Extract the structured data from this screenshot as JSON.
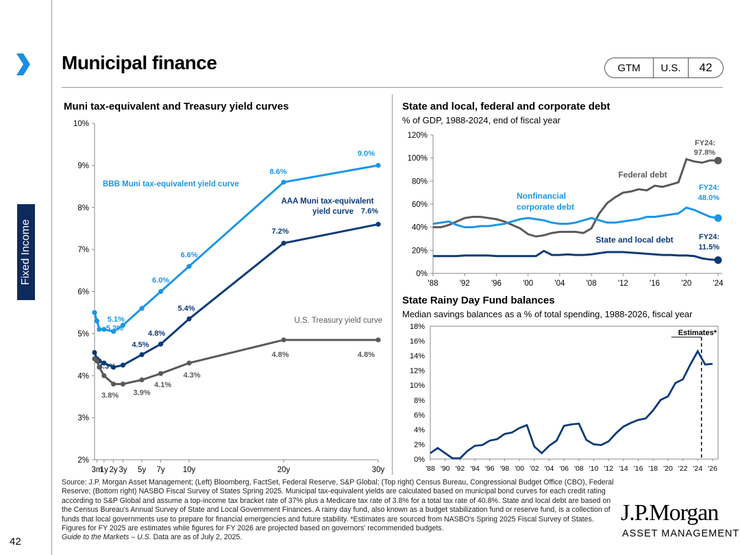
{
  "header": {
    "title": "Municipal finance",
    "pill": [
      "GTM",
      "U.S.",
      "42"
    ],
    "side_tab": "Fixed Income",
    "page_number": "42",
    "arrow_color": "#1a8fe3",
    "tab_color": "#0e2a5c"
  },
  "yield_chart": {
    "title": "Muni tax-equivalent and Treasury yield curves",
    "labels": {
      "bbb": "BBB  Muni tax-equivalent yield curve",
      "aaa1": "AAA Muni tax-equivalent",
      "aaa2": "yield curve",
      "ust": "U.S. Treasury yield curve"
    }
  },
  "debt_chart": {
    "title": "State and local, federal and corporate debt",
    "subtitle": "% of GDP, 1988-2024, end of fiscal year",
    "labels": {
      "federal": "Federal debt",
      "corp1": "Nonfinancial",
      "corp2": "corporate debt",
      "state": "State and local debt",
      "fed_end1": "FY24:",
      "fed_end2": "97.8%",
      "corp_end1": "FY24:",
      "corp_end2": "48.0%",
      "state_end1": "FY24:",
      "state_end2": "11.5%"
    }
  },
  "rainy_chart": {
    "title": "State Rainy Day Fund balances",
    "subtitle": "Median savings balances as a % of total spending, 1988-2026, fiscal year",
    "estimates_label": "Estimates*"
  },
  "footnote": {
    "text": "Source: J.P. Morgan Asset Management; (Left) Bloomberg, FactSet, Federal Reserve, S&P Global; (Top right) Census Bureau, Congressional Budget Office (CBO), Federal Reserve; (Bottom right) NASBO Fiscal Survey of States Spring 2025. Municipal tax-equivalent yields are calculated based on municipal bond curves for each credit rating according to S&P Global and assume a top-income tax bracket rate of 37% plus a Medicare tax rate of 3.8% for a total tax rate of 40.8%. State and local debt are based on the Census Bureau's Annual Survey of State and Local Government Finances. A rainy day fund, also known as a budget stabilization fund or reserve fund, is a collection of funds that local governments use to prepare for financial emergencies and future stability.  *Estimates are sourced from NASBO's Spring 2025 Fiscal Survey of States.  Figures for FY 2025 are estimates while figures for FY 2026 are projected based on governors' recommended budgets.",
    "guide": "Guide to the Markets – U.S.",
    "asof": " Data are as of July 2, 2025."
  },
  "logo": {
    "name": "J.P.Morgan",
    "sub": "ASSET MANAGEMENT"
  },
  "chart_data": [
    {
      "type": "line",
      "title": "Muni tax-equivalent and Treasury yield curves",
      "x": [
        0.25,
        1,
        2,
        3,
        5,
        7,
        10,
        20,
        30
      ],
      "x_tick_labels": [
        "3m",
        "1y",
        "2y",
        "3y",
        "5y",
        "7y",
        "10y",
        "20y",
        "30y"
      ],
      "x_tick_positions": [
        0.25,
        1,
        2,
        3,
        5,
        7,
        10,
        20,
        30
      ],
      "ylim": [
        2,
        10
      ],
      "yticks": [
        2,
        3,
        4,
        5,
        6,
        7,
        8,
        9,
        10
      ],
      "ytick_labels": [
        "2%",
        "3%",
        "4%",
        "5%",
        "6%",
        "7%",
        "8%",
        "9%",
        "10%"
      ],
      "series": [
        {
          "name": "BBB Muni tax-equivalent yield curve",
          "color": "#1b96e6",
          "x": [
            0,
            0.25,
            0.5,
            1,
            2,
            3,
            5,
            7,
            10,
            20,
            30
          ],
          "values": [
            5.5,
            5.3,
            5.1,
            5.1,
            5.05,
            5.2,
            5.6,
            6.0,
            6.6,
            8.6,
            9.0
          ],
          "labels": [
            {
              "i": 3,
              "text": "5.1%"
            },
            {
              "i": 5,
              "text": "5.2%"
            },
            {
              "i": 7,
              "text": "6.0%"
            },
            {
              "i": 8,
              "text": "6.6%"
            },
            {
              "i": 9,
              "text": "8.6%"
            },
            {
              "i": 10,
              "text": "9.0%"
            }
          ]
        },
        {
          "name": "AAA Muni tax-equivalent yield curve",
          "color": "#0b3a78",
          "x": [
            0,
            0.25,
            0.5,
            1,
            2,
            3,
            5,
            7,
            10,
            20,
            30
          ],
          "values": [
            4.55,
            4.4,
            4.35,
            4.3,
            4.2,
            4.25,
            4.5,
            4.75,
            5.35,
            7.15,
            7.6
          ],
          "labels": [
            {
              "i": 3,
              "text": "4.3%"
            },
            {
              "i": 6,
              "text": "4.5%"
            },
            {
              "i": 7,
              "text": "4.8%"
            },
            {
              "i": 8,
              "text": "5.4%"
            },
            {
              "i": 9,
              "text": "7.2%"
            },
            {
              "i": 10,
              "text": "7.6%"
            }
          ]
        },
        {
          "name": "U.S. Treasury yield curve",
          "color": "#595959",
          "x": [
            0,
            0.25,
            0.5,
            1,
            2,
            3,
            5,
            7,
            10,
            20,
            30
          ],
          "values": [
            4.4,
            4.35,
            4.2,
            4.0,
            3.8,
            3.8,
            3.9,
            4.05,
            4.3,
            4.85,
            4.85
          ],
          "labels": [
            {
              "i": 4,
              "text": "3.8%"
            },
            {
              "i": 6,
              "text": "3.9%"
            },
            {
              "i": 7,
              "text": "4.1%"
            },
            {
              "i": 8,
              "text": "4.3%"
            },
            {
              "i": 9,
              "text": "4.8%"
            },
            {
              "i": 10,
              "text": "4.8%"
            }
          ]
        }
      ]
    },
    {
      "type": "line",
      "title": "State and local, federal and corporate debt",
      "xlabel": "",
      "ylabel": "% of GDP",
      "xlim": [
        1988,
        2024
      ],
      "xticks": [
        1988,
        1992,
        1996,
        2000,
        2004,
        2008,
        2012,
        2016,
        2020,
        2024
      ],
      "xtick_labels": [
        "'88",
        "'92",
        "'96",
        "'00",
        "'04",
        "'08",
        "'12",
        "'16",
        "'20",
        "'24"
      ],
      "ylim": [
        0,
        120
      ],
      "yticks": [
        0,
        20,
        40,
        60,
        80,
        100,
        120
      ],
      "ytick_labels": [
        "0%",
        "20%",
        "40%",
        "60%",
        "80%",
        "100%",
        "120%"
      ],
      "series": [
        {
          "name": "Federal debt",
          "color": "#595959",
          "x": [
            1988,
            1989,
            1990,
            1991,
            1992,
            1993,
            1994,
            1995,
            1996,
            1997,
            1998,
            1999,
            2000,
            2001,
            2002,
            2003,
            2004,
            2005,
            2006,
            2007,
            2008,
            2009,
            2010,
            2011,
            2012,
            2013,
            2014,
            2015,
            2016,
            2017,
            2018,
            2019,
            2020,
            2021,
            2022,
            2023,
            2024
          ],
          "values": [
            40,
            40,
            42,
            45,
            48,
            49,
            49,
            48,
            47,
            45,
            42,
            39,
            34,
            32,
            33,
            35,
            36,
            36,
            36,
            35,
            39,
            52,
            61,
            66,
            70,
            71,
            73,
            72,
            76,
            75,
            77,
            79,
            99,
            97,
            96,
            98,
            97.8
          ]
        },
        {
          "name": "Nonfinancial corporate debt",
          "color": "#1b96e6",
          "x": [
            1988,
            1989,
            1990,
            1991,
            1992,
            1993,
            1994,
            1995,
            1996,
            1997,
            1998,
            1999,
            2000,
            2001,
            2002,
            2003,
            2004,
            2005,
            2006,
            2007,
            2008,
            2009,
            2010,
            2011,
            2012,
            2013,
            2014,
            2015,
            2016,
            2017,
            2018,
            2019,
            2020,
            2021,
            2022,
            2023,
            2024
          ],
          "values": [
            43,
            44,
            45,
            42,
            40,
            40,
            41,
            41,
            42,
            43,
            45,
            47,
            48,
            47,
            46,
            44,
            43,
            43,
            44,
            46,
            48,
            46,
            44,
            44,
            45,
            46,
            47,
            49,
            49,
            50,
            51,
            52,
            57,
            55,
            52,
            49,
            48
          ]
        },
        {
          "name": "State and local debt",
          "color": "#0b3a78",
          "x": [
            1988,
            1989,
            1990,
            1991,
            1992,
            1993,
            1994,
            1995,
            1996,
            1997,
            1998,
            1999,
            2000,
            2001,
            2002,
            2003,
            2004,
            2005,
            2006,
            2007,
            2008,
            2009,
            2010,
            2011,
            2012,
            2013,
            2014,
            2015,
            2016,
            2017,
            2018,
            2019,
            2020,
            2021,
            2022,
            2023,
            2024
          ],
          "values": [
            15,
            15,
            15,
            15,
            15.5,
            15.5,
            15.5,
            15.5,
            15,
            15,
            15,
            15,
            15,
            15,
            19.5,
            16,
            16,
            16.5,
            16,
            16,
            16.5,
            17.5,
            18.5,
            18.5,
            18.5,
            18,
            17.5,
            17,
            16.5,
            16,
            16,
            15.5,
            15.5,
            15,
            13,
            12,
            11.5
          ]
        }
      ]
    },
    {
      "type": "line",
      "title": "State Rainy Day Fund balances",
      "xlim": [
        1988,
        2026
      ],
      "xticks": [
        1988,
        1990,
        1992,
        1994,
        1996,
        1998,
        2000,
        2002,
        2004,
        2006,
        2008,
        2010,
        2012,
        2014,
        2016,
        2018,
        2020,
        2022,
        2024,
        2026
      ],
      "xtick_labels": [
        "'88",
        "'90",
        "'92",
        "'94",
        "'96",
        "'98",
        "'00",
        "'02",
        "'04",
        "'06",
        "'08",
        "'10",
        "'12",
        "'14",
        "'16",
        "'18",
        "'20",
        "'22",
        "'24",
        "'26"
      ],
      "ylim": [
        0,
        18
      ],
      "yticks": [
        0,
        2,
        4,
        6,
        8,
        10,
        12,
        14,
        16,
        18
      ],
      "ytick_labels": [
        "0%",
        "2%",
        "4%",
        "6%",
        "8%",
        "10%",
        "12%",
        "14%",
        "16%",
        "18%"
      ],
      "estimates_from": 2024.5,
      "series": [
        {
          "name": "Rainy day fund balance",
          "color": "#0b3a78",
          "x": [
            1988,
            1989,
            1990,
            1991,
            1992,
            1993,
            1994,
            1995,
            1996,
            1997,
            1998,
            1999,
            2000,
            2001,
            2002,
            2003,
            2004,
            2005,
            2006,
            2007,
            2008,
            2009,
            2010,
            2011,
            2012,
            2013,
            2014,
            2015,
            2016,
            2017,
            2018,
            2019,
            2020,
            2021,
            2022,
            2023,
            2024,
            2025,
            2026
          ],
          "values": [
            0.8,
            1.5,
            0.8,
            0.1,
            0.1,
            1.1,
            1.8,
            1.9,
            2.5,
            2.7,
            3.4,
            3.6,
            4.2,
            4.6,
            1.7,
            0.8,
            1.8,
            2.5,
            4.5,
            4.7,
            4.8,
            2.6,
            2.0,
            1.9,
            2.4,
            3.5,
            4.4,
            4.9,
            5.3,
            5.5,
            6.6,
            8.0,
            8.5,
            10.3,
            10.8,
            12.8,
            14.6,
            12.8,
            12.9
          ]
        }
      ]
    }
  ]
}
